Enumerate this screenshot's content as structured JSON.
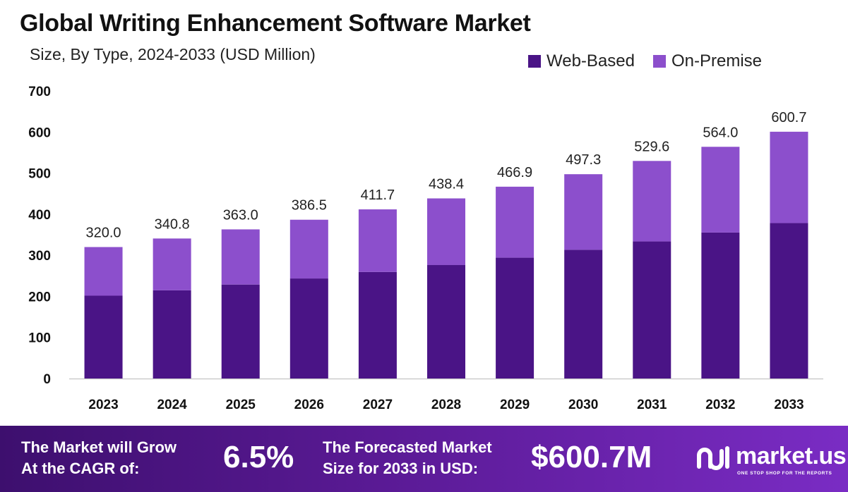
{
  "chart_data": {
    "type": "bar",
    "stacked": true,
    "title": "Global Writing Enhancement Software Market",
    "subtitle": "Size, By Type, 2024-2033 (USD Million)",
    "categories": [
      "2023",
      "2024",
      "2025",
      "2026",
      "2027",
      "2028",
      "2029",
      "2030",
      "2031",
      "2032",
      "2033"
    ],
    "series": [
      {
        "name": "Web-Based",
        "color": "#4a1486",
        "values": [
          201.6,
          214.7,
          228.7,
          243.5,
          259.4,
          276.2,
          294.1,
          313.3,
          333.6,
          355.3,
          378.4
        ]
      },
      {
        "name": "On-Premise",
        "color": "#8c4fcc",
        "values": [
          118.4,
          126.1,
          134.3,
          143.0,
          152.3,
          162.2,
          172.8,
          184.0,
          196.0,
          208.7,
          222.3
        ]
      }
    ],
    "totals": [
      "320.0",
      "340.8",
      "363.0",
      "386.5",
      "411.7",
      "438.4",
      "466.9",
      "497.3",
      "529.6",
      "564.0",
      "600.7"
    ],
    "yticks": [
      "0",
      "100",
      "200",
      "300",
      "400",
      "500",
      "600",
      "700"
    ],
    "ylim": [
      0,
      700
    ],
    "legend_position": "top-right",
    "grid": false
  },
  "footer": {
    "cagr_line1": "The Market will Grow",
    "cagr_line2": "At the CAGR of:",
    "cagr_value": "6.5%",
    "forecast_line1": "The Forecasted Market",
    "forecast_line2": "Size for 2033 in USD:",
    "forecast_value": "$600.7M",
    "logo_text": "market.us",
    "logo_tagline": "ONE STOP SHOP FOR THE REPORTS"
  }
}
